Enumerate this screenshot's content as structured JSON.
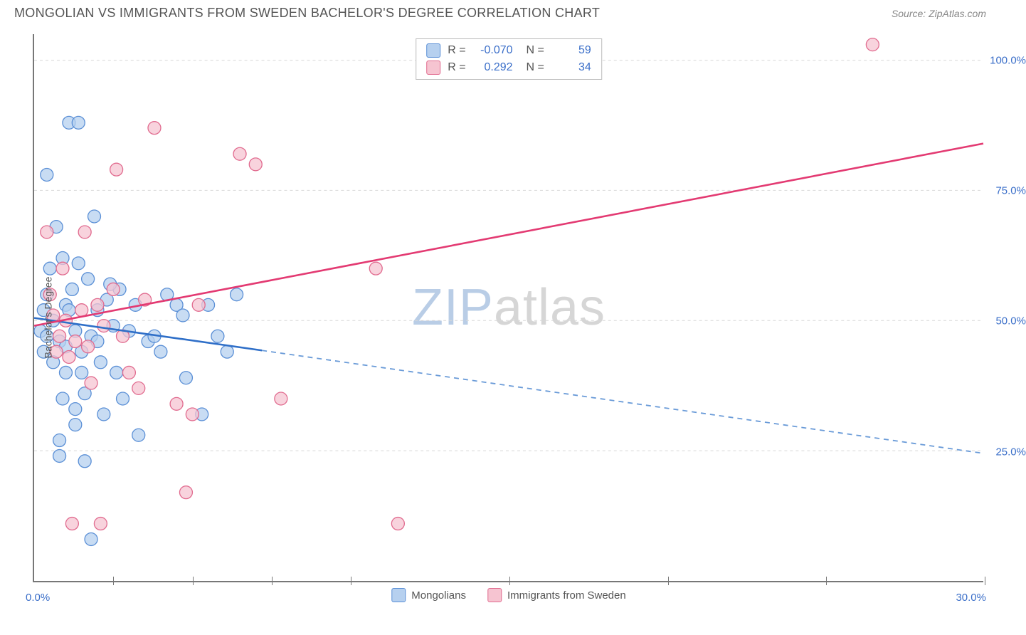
{
  "title": "MONGOLIAN VS IMMIGRANTS FROM SWEDEN BACHELOR'S DEGREE CORRELATION CHART",
  "source": "Source: ZipAtlas.com",
  "watermark_a": "ZIP",
  "watermark_b": "atlas",
  "ylabel": "Bachelor's Degree",
  "chart": {
    "type": "scatter",
    "xlim": [
      0,
      30
    ],
    "ylim": [
      0,
      105
    ],
    "xtick_start": "0.0%",
    "xtick_end": "30.0%",
    "xtick_marks": [
      2.5,
      5,
      7.5,
      10,
      15,
      20,
      25,
      30
    ],
    "yticks": [
      {
        "v": 25,
        "label": "25.0%"
      },
      {
        "v": 50,
        "label": "50.0%"
      },
      {
        "v": 75,
        "label": "75.0%"
      },
      {
        "v": 100,
        "label": "100.0%"
      }
    ],
    "grid_color": "#d7d7d7",
    "background": "#ffffff",
    "series": [
      {
        "name": "Mongolians",
        "fill": "#b6d0ef",
        "stroke": "#5a8fd6",
        "R": "-0.070",
        "N": "59",
        "marker_r": 9,
        "points": [
          [
            0.2,
            48
          ],
          [
            0.3,
            52
          ],
          [
            0.3,
            44
          ],
          [
            0.4,
            78
          ],
          [
            0.4,
            47
          ],
          [
            0.4,
            55
          ],
          [
            0.5,
            60
          ],
          [
            0.6,
            50
          ],
          [
            0.6,
            42
          ],
          [
            0.7,
            68
          ],
          [
            0.8,
            46
          ],
          [
            0.8,
            27
          ],
          [
            0.8,
            24
          ],
          [
            0.9,
            35
          ],
          [
            0.9,
            62
          ],
          [
            1.0,
            53
          ],
          [
            1.0,
            45
          ],
          [
            1.0,
            40
          ],
          [
            1.1,
            88
          ],
          [
            1.1,
            52
          ],
          [
            1.2,
            56
          ],
          [
            1.3,
            48
          ],
          [
            1.3,
            33
          ],
          [
            1.3,
            30
          ],
          [
            1.4,
            88
          ],
          [
            1.4,
            61
          ],
          [
            1.5,
            44
          ],
          [
            1.5,
            40
          ],
          [
            1.6,
            36
          ],
          [
            1.6,
            23
          ],
          [
            1.7,
            58
          ],
          [
            1.8,
            47
          ],
          [
            1.8,
            8
          ],
          [
            1.9,
            70
          ],
          [
            2.0,
            52
          ],
          [
            2.0,
            46
          ],
          [
            2.1,
            42
          ],
          [
            2.2,
            32
          ],
          [
            2.3,
            54
          ],
          [
            2.5,
            49
          ],
          [
            2.6,
            40
          ],
          [
            2.7,
            56
          ],
          [
            2.8,
            35
          ],
          [
            3.0,
            48
          ],
          [
            3.2,
            53
          ],
          [
            3.6,
            46
          ],
          [
            3.8,
            47
          ],
          [
            4.0,
            44
          ],
          [
            4.2,
            55
          ],
          [
            4.5,
            53
          ],
          [
            4.7,
            51
          ],
          [
            4.8,
            39
          ],
          [
            5.3,
            32
          ],
          [
            5.5,
            53
          ],
          [
            5.8,
            47
          ],
          [
            6.1,
            44
          ],
          [
            6.4,
            55
          ],
          [
            3.3,
            28
          ],
          [
            2.4,
            57
          ]
        ],
        "trend": {
          "x1": 0,
          "y1": 50.5,
          "x2": 30,
          "y2": 24.5,
          "solid_until_x": 7.2,
          "stroke_solid": "#2f6fc8",
          "stroke_dash": "#6a9bd8",
          "width": 2.6
        }
      },
      {
        "name": "Immigrants from Sweden",
        "fill": "#f6c4d1",
        "stroke": "#e16b8f",
        "R": "0.292",
        "N": "34",
        "marker_r": 9,
        "points": [
          [
            0.4,
            67
          ],
          [
            0.5,
            55
          ],
          [
            0.6,
            51
          ],
          [
            0.7,
            44
          ],
          [
            0.8,
            47
          ],
          [
            0.9,
            60
          ],
          [
            1.0,
            50
          ],
          [
            1.1,
            43
          ],
          [
            1.2,
            11
          ],
          [
            1.3,
            46
          ],
          [
            1.5,
            52
          ],
          [
            1.6,
            67
          ],
          [
            1.7,
            45
          ],
          [
            1.8,
            38
          ],
          [
            2.0,
            53
          ],
          [
            2.1,
            11
          ],
          [
            2.2,
            49
          ],
          [
            2.5,
            56
          ],
          [
            2.6,
            79
          ],
          [
            2.8,
            47
          ],
          [
            3.0,
            40
          ],
          [
            3.3,
            37
          ],
          [
            3.5,
            54
          ],
          [
            3.8,
            87
          ],
          [
            4.5,
            34
          ],
          [
            4.8,
            17
          ],
          [
            5.0,
            32
          ],
          [
            5.2,
            53
          ],
          [
            6.5,
            82
          ],
          [
            7.0,
            80
          ],
          [
            7.8,
            35
          ],
          [
            10.8,
            60
          ],
          [
            11.5,
            11
          ],
          [
            26.5,
            103
          ]
        ],
        "trend": {
          "x1": 0,
          "y1": 49,
          "x2": 30,
          "y2": 84,
          "solid_until_x": 30,
          "stroke_solid": "#e33a72",
          "stroke_dash": "#e33a72",
          "width": 2.6
        }
      }
    ]
  },
  "legend_bottom": [
    {
      "swatch_fill": "#b6d0ef",
      "swatch_stroke": "#5a8fd6",
      "label": "Mongolians"
    },
    {
      "swatch_fill": "#f6c4d1",
      "swatch_stroke": "#e16b8f",
      "label": "Immigrants from Sweden"
    }
  ]
}
